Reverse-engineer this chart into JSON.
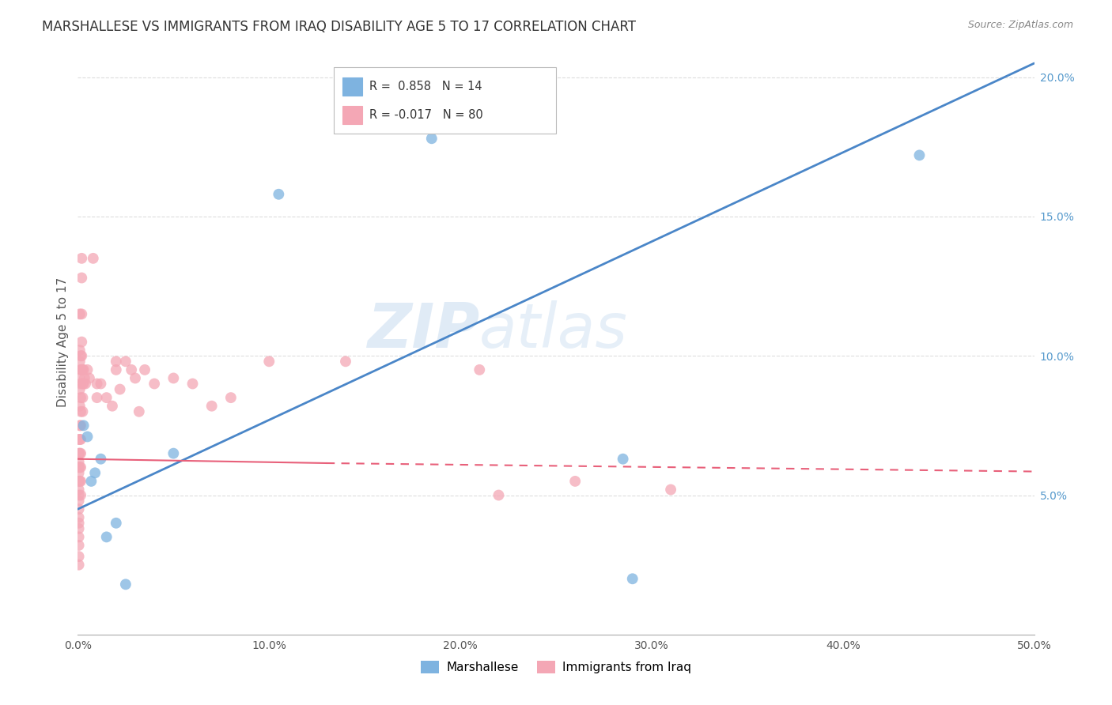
{
  "title": "MARSHALLESE VS IMMIGRANTS FROM IRAQ DISABILITY AGE 5 TO 17 CORRELATION CHART",
  "source": "Source: ZipAtlas.com",
  "ylabel": "Disability Age 5 to 17",
  "legend_label1": "Marshallese",
  "legend_label2": "Immigrants from Iraq",
  "r1": 0.858,
  "n1": 14,
  "r2": -0.017,
  "n2": 80,
  "xlim": [
    0.0,
    50.0
  ],
  "ylim": [
    0.0,
    21.0
  ],
  "yticks": [
    5.0,
    10.0,
    15.0,
    20.0
  ],
  "xticks": [
    0.0,
    10.0,
    20.0,
    30.0,
    40.0,
    50.0
  ],
  "color_blue": "#7EB3E0",
  "color_pink": "#F4A7B5",
  "color_blue_line": "#4A86C8",
  "color_pink_line": "#E8607A",
  "watermark_zip": "ZIP",
  "watermark_atlas": "atlas",
  "blue_line_x0": 0.0,
  "blue_line_y0": 4.5,
  "blue_line_x1": 50.0,
  "blue_line_y1": 20.5,
  "pink_line_solid_x0": 0.0,
  "pink_line_solid_y0": 6.3,
  "pink_line_solid_x1": 13.0,
  "pink_line_solid_y1": 6.15,
  "pink_line_dash_x0": 13.0,
  "pink_line_dash_y0": 6.15,
  "pink_line_dash_x1": 50.0,
  "pink_line_dash_y1": 5.85,
  "blue_scatter": [
    [
      0.3,
      7.5
    ],
    [
      0.5,
      7.1
    ],
    [
      0.7,
      5.5
    ],
    [
      0.9,
      5.8
    ],
    [
      1.2,
      6.3
    ],
    [
      1.5,
      3.5
    ],
    [
      2.0,
      4.0
    ],
    [
      2.5,
      1.8
    ],
    [
      5.0,
      6.5
    ],
    [
      10.5,
      15.8
    ],
    [
      18.5,
      17.8
    ],
    [
      28.5,
      6.3
    ],
    [
      29.0,
      2.0
    ],
    [
      44.0,
      17.2
    ]
  ],
  "pink_scatter": [
    [
      0.05,
      7.0
    ],
    [
      0.05,
      6.5
    ],
    [
      0.05,
      6.2
    ],
    [
      0.05,
      6.0
    ],
    [
      0.05,
      5.8
    ],
    [
      0.05,
      5.5
    ],
    [
      0.05,
      5.2
    ],
    [
      0.05,
      5.0
    ],
    [
      0.05,
      4.8
    ],
    [
      0.05,
      4.5
    ],
    [
      0.05,
      4.2
    ],
    [
      0.05,
      4.0
    ],
    [
      0.05,
      3.8
    ],
    [
      0.05,
      3.5
    ],
    [
      0.05,
      3.2
    ],
    [
      0.05,
      2.8
    ],
    [
      0.05,
      2.5
    ],
    [
      0.1,
      11.5
    ],
    [
      0.1,
      10.2
    ],
    [
      0.1,
      9.8
    ],
    [
      0.1,
      9.2
    ],
    [
      0.1,
      8.8
    ],
    [
      0.1,
      8.2
    ],
    [
      0.1,
      7.5
    ],
    [
      0.1,
      7.0
    ],
    [
      0.1,
      6.5
    ],
    [
      0.1,
      6.0
    ],
    [
      0.1,
      5.5
    ],
    [
      0.15,
      10.0
    ],
    [
      0.15,
      9.5
    ],
    [
      0.15,
      9.0
    ],
    [
      0.15,
      8.5
    ],
    [
      0.15,
      8.0
    ],
    [
      0.15,
      7.5
    ],
    [
      0.15,
      7.0
    ],
    [
      0.15,
      6.5
    ],
    [
      0.15,
      6.0
    ],
    [
      0.15,
      5.5
    ],
    [
      0.15,
      5.0
    ],
    [
      0.2,
      13.5
    ],
    [
      0.2,
      12.8
    ],
    [
      0.2,
      11.5
    ],
    [
      0.2,
      10.5
    ],
    [
      0.2,
      10.0
    ],
    [
      0.2,
      9.5
    ],
    [
      0.25,
      9.5
    ],
    [
      0.25,
      9.0
    ],
    [
      0.25,
      8.5
    ],
    [
      0.25,
      8.0
    ],
    [
      0.3,
      9.5
    ],
    [
      0.3,
      9.0
    ],
    [
      0.35,
      9.2
    ],
    [
      0.4,
      9.0
    ],
    [
      0.5,
      9.5
    ],
    [
      0.6,
      9.2
    ],
    [
      0.8,
      13.5
    ],
    [
      1.0,
      9.0
    ],
    [
      1.0,
      8.5
    ],
    [
      1.2,
      9.0
    ],
    [
      1.5,
      8.5
    ],
    [
      1.8,
      8.2
    ],
    [
      2.0,
      9.8
    ],
    [
      2.0,
      9.5
    ],
    [
      2.2,
      8.8
    ],
    [
      2.5,
      9.8
    ],
    [
      2.8,
      9.5
    ],
    [
      3.0,
      9.2
    ],
    [
      3.2,
      8.0
    ],
    [
      3.5,
      9.5
    ],
    [
      4.0,
      9.0
    ],
    [
      5.0,
      9.2
    ],
    [
      6.0,
      9.0
    ],
    [
      7.0,
      8.2
    ],
    [
      8.0,
      8.5
    ],
    [
      10.0,
      9.8
    ],
    [
      14.0,
      9.8
    ],
    [
      21.0,
      9.5
    ],
    [
      22.0,
      5.0
    ],
    [
      26.0,
      5.5
    ],
    [
      31.0,
      5.2
    ]
  ]
}
